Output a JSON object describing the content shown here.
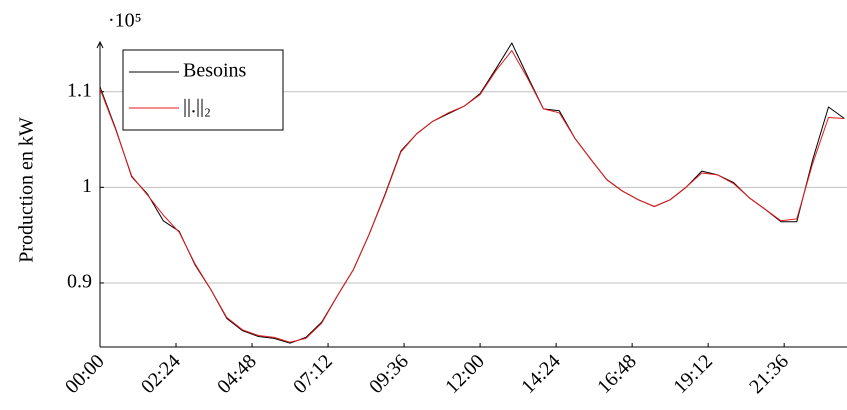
{
  "chart_data": {
    "type": "line",
    "y_label": "Production en kW",
    "y_multiplier": "·10⁵",
    "x": [
      "00:00",
      "00:30",
      "01:00",
      "01:30",
      "02:00",
      "02:30",
      "03:00",
      "03:30",
      "04:00",
      "04:30",
      "05:00",
      "05:30",
      "06:00",
      "06:30",
      "07:00",
      "07:30",
      "08:00",
      "08:30",
      "09:00",
      "09:30",
      "10:00",
      "10:30",
      "11:00",
      "11:30",
      "12:00",
      "12:30",
      "13:00",
      "13:30",
      "14:00",
      "14:30",
      "15:00",
      "15:30",
      "16:00",
      "16:30",
      "17:00",
      "17:30",
      "18:00",
      "18:30",
      "19:00",
      "19:30",
      "20:00",
      "20:30",
      "21:00",
      "21:30",
      "22:00",
      "22:30",
      "23:00",
      "23:30"
    ],
    "series": [
      {
        "name": "Besoins",
        "color": "#000000",
        "values": [
          1.105,
          1.061,
          1.011,
          0.993,
          0.965,
          0.954,
          0.919,
          0.893,
          0.863,
          0.85,
          0.844,
          0.842,
          0.837,
          0.843,
          0.859,
          0.887,
          0.914,
          0.951,
          0.993,
          1.038,
          1.056,
          1.069,
          1.077,
          1.085,
          1.098,
          1.124,
          1.151,
          1.116,
          1.082,
          1.08,
          1.051,
          1.029,
          1.008,
          0.996,
          0.987,
          0.98,
          0.987,
          1.0,
          1.017,
          1.013,
          1.005,
          0.989,
          0.977,
          0.964,
          0.964,
          1.029,
          1.084,
          1.072
        ]
      },
      {
        "name": "||.||₂",
        "color": "#e41a1c",
        "values": [
          1.103,
          1.06,
          1.012,
          0.992,
          0.971,
          0.953,
          0.92,
          0.893,
          0.864,
          0.851,
          0.845,
          0.843,
          0.838,
          0.842,
          0.858,
          0.887,
          0.914,
          0.951,
          0.992,
          1.037,
          1.056,
          1.069,
          1.078,
          1.085,
          1.097,
          1.122,
          1.143,
          1.114,
          1.082,
          1.078,
          1.051,
          1.029,
          1.008,
          0.996,
          0.987,
          0.98,
          0.987,
          1.0,
          1.015,
          1.013,
          1.004,
          0.989,
          0.977,
          0.965,
          0.967,
          1.025,
          1.073,
          1.072
        ]
      }
    ],
    "xlim": [
      "00:00",
      "23:35"
    ],
    "xticks": [
      "00:00",
      "02:24",
      "04:48",
      "07:12",
      "09:36",
      "12:00",
      "14:24",
      "16:48",
      "19:12",
      "21:36"
    ],
    "ylim": [
      0.833,
      1.152
    ],
    "yticks": [
      0.9,
      1,
      1.1
    ],
    "grid": true,
    "legend": "upper left"
  }
}
